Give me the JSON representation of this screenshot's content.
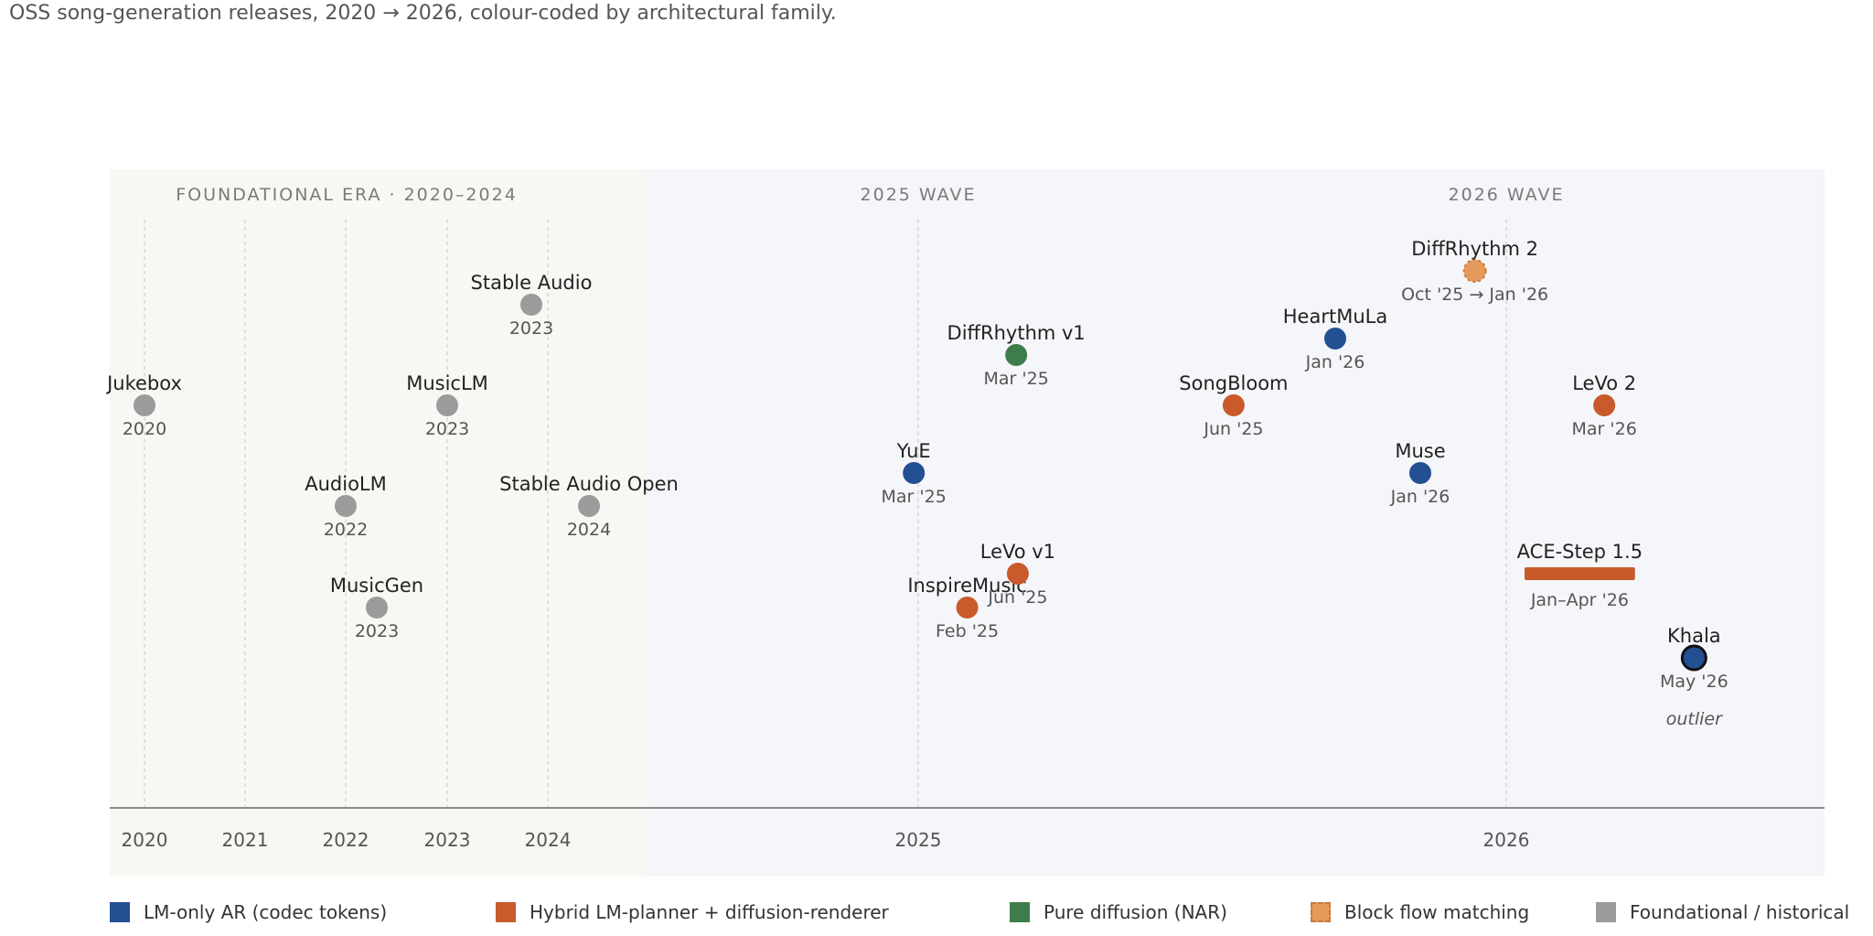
{
  "chart_data": {
    "type": "scatter",
    "subtitle": "OSS song-generation releases, 2020 → 2026, colour-coded by architectural family.",
    "eras": [
      {
        "label": "FOUNDATIONAL ERA · 2020–2024",
        "fill": "#f8f7f3"
      },
      {
        "label": "2025 WAVE",
        "fill": "#f5f6f9"
      },
      {
        "label": "2026 WAVE",
        "fill": "#f5f6f9"
      }
    ],
    "ticks": [
      "2020",
      "2021",
      "2022",
      "2023",
      "2024",
      "2025",
      "2026"
    ],
    "families": [
      {
        "key": "lm",
        "label": "LM-only AR (codec tokens)",
        "color": "#234f93"
      },
      {
        "key": "hybrid",
        "label": "Hybrid LM-planner + diffusion-renderer",
        "color": "#c95a2b"
      },
      {
        "key": "diffusion",
        "label": "Pure diffusion (NAR)",
        "color": "#3d7d4b"
      },
      {
        "key": "block",
        "label": "Block flow matching",
        "color": "#e59a5c"
      },
      {
        "key": "historical",
        "label": "Foundational / historical",
        "color": "#9b9b9b"
      }
    ],
    "points": [
      {
        "name": "Jukebox",
        "date_label": "2020",
        "x": "2020",
        "family": "historical"
      },
      {
        "name": "AudioLM",
        "date_label": "2022",
        "x": "2022",
        "family": "historical"
      },
      {
        "name": "MusicLM",
        "date_label": "2023",
        "x": "2023",
        "family": "historical"
      },
      {
        "name": "MusicGen",
        "date_label": "2023",
        "x": "2023",
        "family": "historical"
      },
      {
        "name": "Stable Audio",
        "date_label": "2023",
        "x": "2023",
        "family": "historical"
      },
      {
        "name": "Stable Audio Open",
        "date_label": "2024",
        "x": "2024",
        "family": "historical"
      },
      {
        "name": "InspireMusic",
        "date_label": "Feb '25",
        "x": "2025-02",
        "family": "hybrid"
      },
      {
        "name": "DiffRhythm v1",
        "date_label": "Mar '25",
        "x": "2025-03",
        "family": "diffusion"
      },
      {
        "name": "YuE",
        "date_label": "Mar '25",
        "x": "2025-03",
        "family": "lm"
      },
      {
        "name": "LeVo v1",
        "date_label": "Jun '25",
        "x": "2025-06",
        "family": "hybrid"
      },
      {
        "name": "SongBloom",
        "date_label": "Jun '25",
        "x": "2025-06",
        "family": "hybrid"
      },
      {
        "name": "HeartMuLa",
        "date_label": "Jan '26",
        "x": "2026-01",
        "family": "lm"
      },
      {
        "name": "Muse",
        "date_label": "Jan '26",
        "x": "2026-01",
        "family": "lm"
      },
      {
        "name": "DiffRhythm 2",
        "date_label": "Oct '25 → Jan '26",
        "x": "2025-10 → 2026-01",
        "family": "block"
      },
      {
        "name": "ACE-Step 1.5",
        "date_label": "Jan–Apr '26",
        "x": "2026-01 → 2026-04",
        "family": "hybrid"
      },
      {
        "name": "LeVo 2",
        "date_label": "Mar '26",
        "x": "2026-03",
        "family": "hybrid"
      },
      {
        "name": "Khala",
        "date_label": "May '26",
        "x": "2026-05",
        "family": "lm",
        "note": "outlier"
      }
    ]
  }
}
